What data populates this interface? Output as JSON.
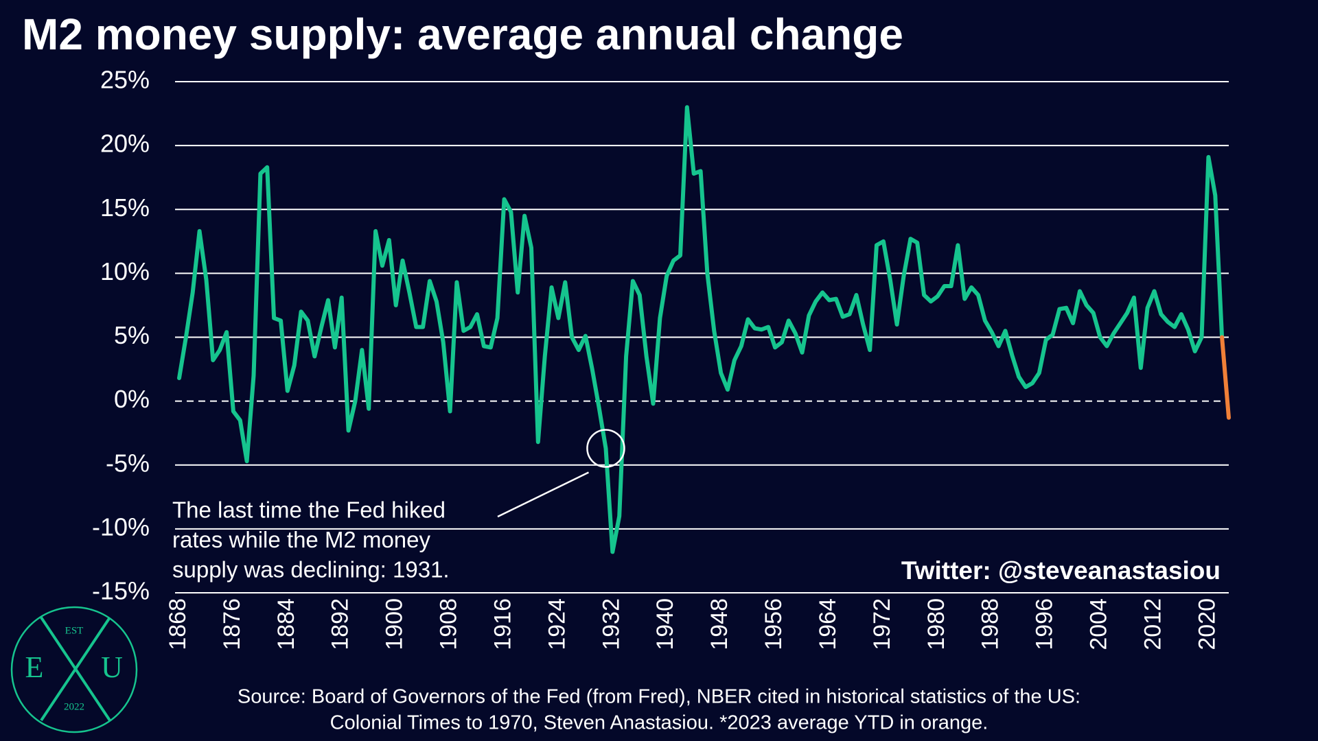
{
  "chart_data": {
    "type": "line",
    "title": "M2 money supply: average annual change",
    "x": [
      1868,
      1869,
      1870,
      1871,
      1872,
      1873,
      1874,
      1875,
      1876,
      1877,
      1878,
      1879,
      1880,
      1881,
      1882,
      1883,
      1884,
      1885,
      1886,
      1887,
      1888,
      1889,
      1890,
      1891,
      1892,
      1893,
      1894,
      1895,
      1896,
      1897,
      1898,
      1899,
      1900,
      1901,
      1902,
      1903,
      1904,
      1905,
      1906,
      1907,
      1908,
      1909,
      1910,
      1911,
      1912,
      1913,
      1914,
      1915,
      1916,
      1917,
      1918,
      1919,
      1920,
      1921,
      1922,
      1923,
      1924,
      1925,
      1926,
      1927,
      1928,
      1929,
      1930,
      1931,
      1932,
      1933,
      1934,
      1935,
      1936,
      1937,
      1938,
      1939,
      1940,
      1941,
      1942,
      1943,
      1944,
      1945,
      1946,
      1947,
      1948,
      1949,
      1950,
      1951,
      1952,
      1953,
      1954,
      1955,
      1956,
      1957,
      1958,
      1959,
      1960,
      1961,
      1962,
      1963,
      1964,
      1965,
      1966,
      1967,
      1968,
      1969,
      1970,
      1971,
      1972,
      1973,
      1974,
      1975,
      1976,
      1977,
      1978,
      1979,
      1980,
      1981,
      1982,
      1983,
      1984,
      1985,
      1986,
      1987,
      1988,
      1989,
      1990,
      1991,
      1992,
      1993,
      1994,
      1995,
      1996,
      1997,
      1998,
      1999,
      2000,
      2001,
      2002,
      2003,
      2004,
      2005,
      2006,
      2007,
      2008,
      2009,
      2010,
      2011,
      2012,
      2013,
      2014,
      2015,
      2016,
      2017,
      2018,
      2019,
      2020,
      2021,
      2022
    ],
    "series": [
      {
        "color": "#16c48e",
        "values": [
          1.8,
          5,
          8.5,
          13.3,
          9.5,
          3.2,
          4,
          5.4,
          -0.8,
          -1.5,
          -4.7,
          2,
          17.8,
          18.3,
          6.5,
          6.3,
          0.8,
          2.8,
          7,
          6.3,
          3.5,
          5.8,
          7.9,
          4.2,
          8.1,
          -2.3,
          0,
          4,
          -0.6,
          13.3,
          10.6,
          12.6,
          7.5,
          11,
          8.5,
          5.8,
          5.8,
          9.4,
          7.8,
          4.6,
          -0.8,
          9.3,
          5.5,
          5.8,
          6.8,
          4.3,
          4.2,
          6.5,
          15.8,
          14.8,
          8.5,
          14.5,
          12,
          -3.2,
          3.5,
          8.9,
          6.5,
          9.3,
          5,
          4,
          5.1,
          2.5,
          -0.5,
          -3.7,
          -11.8,
          -9,
          3.5,
          9.4,
          8.3,
          3.5,
          -0.2,
          6.5,
          9.8,
          11,
          11.4,
          23,
          17.8,
          18,
          10,
          5.5,
          2.2,
          0.9,
          3.2,
          4.3,
          6.4,
          5.7,
          5.6,
          5.8,
          4.2,
          4.6,
          6.3,
          5.3,
          3.8,
          6.7,
          7.8,
          8.5,
          7.9,
          8,
          6.6,
          6.8,
          8.3,
          6,
          4,
          12.2,
          12.5,
          9.5,
          6,
          9.8,
          12.7,
          12.4,
          8.3,
          7.8,
          8.2,
          9,
          9,
          12.2,
          8,
          8.9,
          8.3,
          6.3,
          5.4,
          4.3,
          5.5,
          3.6,
          1.9,
          1.1,
          1.4,
          2.2,
          4.8,
          5.2,
          7.2,
          7.3,
          6.1,
          8.6,
          7.5,
          6.9,
          5,
          4.3,
          5.3,
          6.1,
          6.9,
          8.1,
          2.6,
          7.3,
          8.6,
          6.8,
          6.2,
          5.8,
          6.8,
          5.6,
          3.9,
          5,
          19.1,
          16.1,
          5
        ]
      },
      {
        "color": "#f08038",
        "x": [
          2022,
          2023
        ],
        "values": [
          5,
          -1.3
        ]
      }
    ],
    "xlim": [
      1868,
      2023
    ],
    "ylim": [
      -15,
      25
    ],
    "xticks": [
      1868,
      1876,
      1884,
      1892,
      1900,
      1908,
      1916,
      1924,
      1932,
      1940,
      1948,
      1956,
      1964,
      1972,
      1980,
      1988,
      1996,
      2004,
      2012,
      2020
    ],
    "yticks": [
      {
        "value": -15,
        "label": "-15%"
      },
      {
        "value": -10,
        "label": "-10%"
      },
      {
        "value": -5,
        "label": "-5%"
      },
      {
        "value": 0,
        "label": "0%"
      },
      {
        "value": 5,
        "label": "5%"
      },
      {
        "value": 10,
        "label": "10%"
      },
      {
        "value": 15,
        "label": "15%"
      },
      {
        "value": 20,
        "label": "20%"
      },
      {
        "value": 25,
        "label": "25%"
      }
    ],
    "grid": true,
    "annotation": {
      "x": 1931,
      "lines": [
        "The last time the Fed hiked",
        "rates while the M2 money",
        "supply was declining: 1931."
      ]
    },
    "credit": "Twitter: @steveanastasiou",
    "source": [
      "Source: Board of Governors of the Fed (from Fred), NBER cited in historical statistics of the US:",
      "Colonial Times to 1970, Steven Anastasiou. *2023 average YTD in orange."
    ]
  },
  "logo": {
    "est": "EST",
    "left": "E",
    "right": "U",
    "year": "2022"
  }
}
